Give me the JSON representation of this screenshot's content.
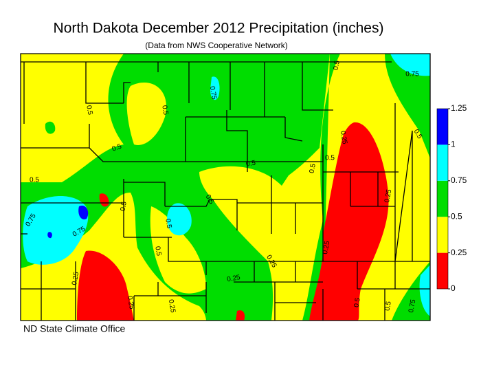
{
  "header": {
    "title": "North Dakota December 2012 Precipitation (inches)",
    "subtitle": "(Data from NWS Cooperative Network)"
  },
  "legend": {
    "ticks": [
      0,
      0.25,
      0.5,
      0.75,
      1,
      1.25
    ],
    "colors": [
      "#ff0000",
      "#ffff00",
      "#00dd00",
      "#00ffff",
      "#0000ff"
    ]
  },
  "contour_labels": [
    "0.5",
    "0.5",
    "0.5",
    "0.5",
    "0.75",
    "0.5",
    "0.5",
    "0.5",
    "0.25",
    "0.75",
    "0.5",
    "0.75",
    "0.75",
    "0.5",
    "0.5",
    "0.5",
    "0.5",
    "0.25",
    "0.25",
    "0.25",
    "0.25",
    "0.25",
    "0.25",
    "0.5",
    "0.5",
    "0.75",
    "0.5",
    "0.25"
  ],
  "credit": "ND State Climate Office"
}
